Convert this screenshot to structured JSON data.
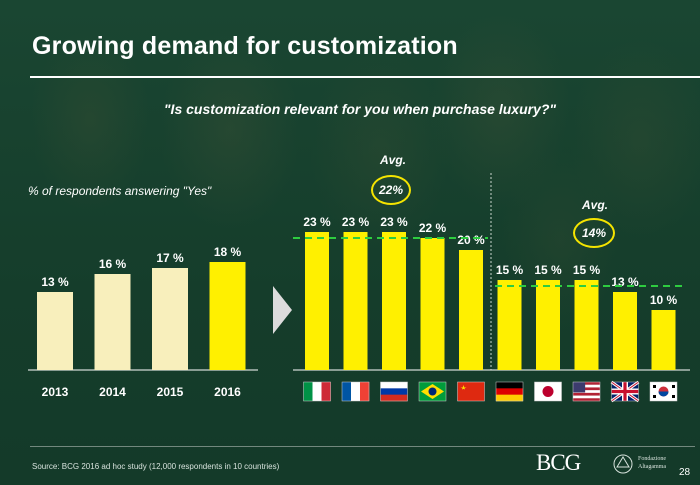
{
  "title": "Growing demand for customization",
  "question": "\"Is customization relevant for you when purchase luxury?\"",
  "respondents_label": "% of respondents answering \"Yes\"",
  "avg_label": "Avg.",
  "source": "Source: BCG 2016 ad hoc study (12,000 respondents in 10 countries)",
  "page_number": "28",
  "logos": {
    "bcg": "BCG",
    "fondazione_line1": "Fondazione",
    "fondazione_line2": "Altagamma"
  },
  "colors": {
    "bar_light": "#f8efbc",
    "bar_yellow": "#fff000",
    "avg_line": "#2ecc40",
    "circle": "#f5e400"
  },
  "chart_data": [
    {
      "type": "bar",
      "title": "% of respondents answering \"Yes\"",
      "categories": [
        "2013",
        "2014",
        "2015",
        "2016"
      ],
      "values": [
        13,
        16,
        17,
        18
      ],
      "value_labels": [
        "13 %",
        "16 %",
        "17 %",
        "18 %"
      ],
      "highlight": [
        false,
        false,
        false,
        true
      ],
      "ylim": [
        0,
        25
      ]
    },
    {
      "type": "bar",
      "categories": [
        "Italy",
        "France",
        "Russia",
        "Brazil",
        "China",
        "Germany",
        "Japan",
        "USA",
        "UK",
        "South Korea"
      ],
      "values": [
        23,
        23,
        23,
        22,
        20,
        15,
        15,
        15,
        13,
        10
      ],
      "value_labels": [
        "23 %",
        "23 %",
        "23 %",
        "22 %",
        "20 %",
        "15 %",
        "15 %",
        "15 %",
        "13 %",
        "10 %"
      ],
      "groups": [
        {
          "name": "group-1",
          "avg": 22,
          "avg_label": "22%"
        },
        {
          "name": "group-2",
          "avg": 14,
          "avg_label": "14%"
        }
      ],
      "ylim": [
        0,
        25
      ]
    }
  ]
}
